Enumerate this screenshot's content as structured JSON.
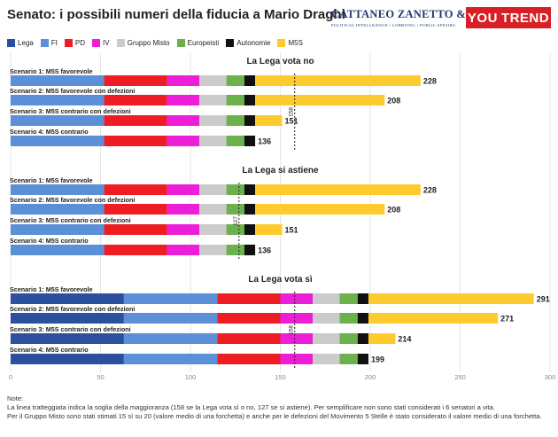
{
  "title": "Senato: i possibili numeri della fiducia a Mario Draghi",
  "logos": {
    "cattaneo_name": "CATTANEO ZANETTO & CO.",
    "cattaneo_tagline": "POLITICAL INTELLIGENCE • LOBBYING • PUBLIC AFFAIRS",
    "youtrend_part1": "YOU",
    "youtrend_part2": "TREND"
  },
  "colors": {
    "Lega": "#2c4f9e",
    "FI": "#5b8fd8",
    "PD": "#ee1d23",
    "IV": "#ec1ed8",
    "Gruppo Misto": "#cbcbcb",
    "Europeisti": "#6db14f",
    "Autonomie": "#111111",
    "M5S": "#fdcb2e",
    "gridline": "#e6e6e6",
    "threshold": "#222222"
  },
  "notes": {
    "heading": "Note:",
    "line1": "La linea tratteggiata indica la soglia della maggioranza (158 se la Lega vota sì o no, 127 se si astiene). Per semplificare non sono stati considerati i 6 senatori a vita.",
    "line2": "Per il Gruppo Misto sono stati stimati 15 sì su 20 (valore medio di una forchetta) e anche per le defezioni del Movimento 5 Stelle è stato considerato il valore medio di una forchetta."
  },
  "chart_data": {
    "type": "bar",
    "orientation": "horizontal",
    "stacked": true,
    "legend": [
      "Lega",
      "FI",
      "PD",
      "IV",
      "Gruppo Misto",
      "Europeisti",
      "Autonomie",
      "M5S"
    ],
    "legend_position": "top-left",
    "x_ticks": [
      0,
      50,
      100,
      150,
      200,
      250,
      300
    ],
    "xlim": [
      0,
      300
    ],
    "grid": true,
    "panels": [
      {
        "title": "La Lega vota no",
        "threshold": 158,
        "threshold_label": "158",
        "scenarios": [
          {
            "label": "Scenario 1: M5S favorevole",
            "values": [
              0,
              52,
              35,
              18,
              15,
              10,
              6,
              92
            ],
            "total": "228"
          },
          {
            "label": "Scenario 2: M5S favorevole con defezioni",
            "values": [
              0,
              52,
              35,
              18,
              15,
              10,
              6,
              72
            ],
            "total": "208"
          },
          {
            "label": "Scenario 3: M5S contrario con defezioni",
            "values": [
              0,
              52,
              35,
              18,
              15,
              10,
              6,
              15
            ],
            "total": "151"
          },
          {
            "label": "Scenario 4: M5S contrario",
            "values": [
              0,
              52,
              35,
              18,
              15,
              10,
              6,
              0
            ],
            "total": "136"
          }
        ]
      },
      {
        "title": "La Lega si astiene",
        "threshold": 127,
        "threshold_label": "127",
        "scenarios": [
          {
            "label": "Scenario 1: M5S favorevole",
            "values": [
              0,
              52,
              35,
              18,
              15,
              10,
              6,
              92
            ],
            "total": "228"
          },
          {
            "label": "Scenario 2: M5S favorevole con defezioni",
            "values": [
              0,
              52,
              35,
              18,
              15,
              10,
              6,
              72
            ],
            "total": "208"
          },
          {
            "label": "Scenario 3: M5S contrario con defezioni",
            "values": [
              0,
              52,
              35,
              18,
              15,
              10,
              6,
              15
            ],
            "total": "151"
          },
          {
            "label": "Scenario 4: M5S contrario",
            "values": [
              0,
              52,
              35,
              18,
              15,
              10,
              6,
              0
            ],
            "total": "136"
          }
        ]
      },
      {
        "title": "La Lega vota sì",
        "threshold": 158,
        "threshold_label": "158",
        "scenarios": [
          {
            "label": "Scenario 1: M5S favorevole",
            "values": [
              63,
              52,
              35,
              18,
              15,
              10,
              6,
              92
            ],
            "total": "291"
          },
          {
            "label": "Scenario 2: M5S favorevole con defezioni",
            "values": [
              63,
              52,
              35,
              18,
              15,
              10,
              6,
              72
            ],
            "total": "271"
          },
          {
            "label": "Scenario 3: M5S contrario con defezioni",
            "values": [
              63,
              52,
              35,
              18,
              15,
              10,
              6,
              15
            ],
            "total": "214"
          },
          {
            "label": "Scenario 4: M5S contrario",
            "values": [
              63,
              52,
              35,
              18,
              15,
              10,
              6,
              0
            ],
            "total": "199"
          }
        ]
      }
    ]
  }
}
